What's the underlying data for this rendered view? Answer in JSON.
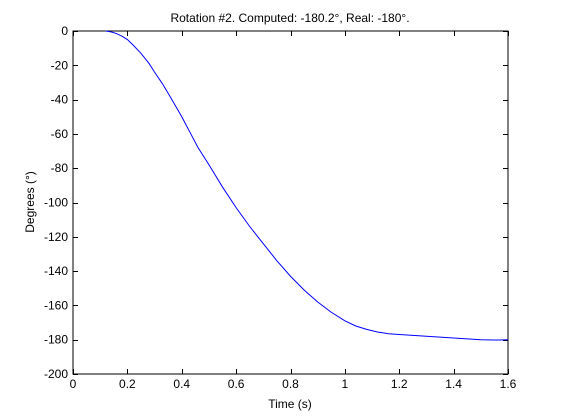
{
  "chart_data": {
    "type": "line",
    "title": "Rotation #2. Computed: -180.2°, Real: -180°.",
    "xlabel": "Time (s)",
    "ylabel": "Degrees (°)",
    "xlim": [
      0,
      1.6
    ],
    "ylim": [
      -200,
      0
    ],
    "xticks": [
      0,
      0.2,
      0.4,
      0.6,
      0.8,
      1,
      1.2,
      1.4,
      1.6
    ],
    "xtick_labels": [
      "0",
      "0.2",
      "0.4",
      "0.6",
      "0.8",
      "1",
      "1.2",
      "1.4",
      "1.6"
    ],
    "yticks": [
      0,
      -20,
      -40,
      -60,
      -80,
      -100,
      -120,
      -140,
      -160,
      -180,
      -200
    ],
    "ytick_labels": [
      "0",
      "-20",
      "-40",
      "-60",
      "-80",
      "-100",
      "-120",
      "-140",
      "-160",
      "-180",
      "-200"
    ],
    "grid": false,
    "series": [
      {
        "color": "#0000ff",
        "x": [
          0.12,
          0.14,
          0.16,
          0.18,
          0.2,
          0.22,
          0.25,
          0.28,
          0.3,
          0.33,
          0.36,
          0.4,
          0.43,
          0.46,
          0.5,
          0.55,
          0.6,
          0.65,
          0.7,
          0.75,
          0.8,
          0.85,
          0.9,
          0.95,
          1.0,
          1.04,
          1.08,
          1.12,
          1.16,
          1.2,
          1.25,
          1.3,
          1.35,
          1.4,
          1.45,
          1.5,
          1.55,
          1.57,
          1.6
        ],
        "y": [
          0,
          -0.5,
          -1.5,
          -3,
          -5,
          -8,
          -13,
          -19,
          -24,
          -31,
          -39,
          -50,
          -59,
          -68,
          -78,
          -91,
          -103,
          -114,
          -124,
          -134,
          -143,
          -151,
          -158,
          -164,
          -169,
          -172,
          -174,
          -175.5,
          -176.5,
          -177,
          -177.5,
          -178,
          -178.5,
          -179,
          -179.5,
          -180,
          -180.2,
          -180.2,
          -180
        ]
      }
    ]
  }
}
